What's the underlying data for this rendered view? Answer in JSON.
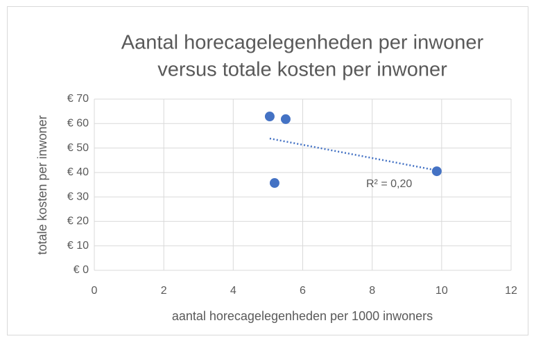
{
  "chart_data": {
    "type": "scatter",
    "title": [
      "Aantal horecagelegenheden per inwoner",
      "versus totale kosten per inwoner"
    ],
    "x_label": "aantal horecagelegenheden per 1000 inwoners",
    "y_label": "totale kosten per inwoner",
    "series": [
      {
        "name": null,
        "color": "#4472c4",
        "x": [
          5.05,
          5.51,
          5.19,
          9.86
        ],
        "values": [
          62.9,
          61.8,
          35.7,
          40.5
        ]
      }
    ],
    "trendline": {
      "type": "linear",
      "color": "#4472c4",
      "annotation": "R² = 0,20"
    },
    "xlim": [
      0,
      12
    ],
    "xticks": [
      0,
      2,
      4,
      6,
      8,
      10,
      12
    ],
    "ylim": [
      0,
      70
    ],
    "yticks": [
      {
        "value": 0,
        "label": "€ 0"
      },
      {
        "value": 10,
        "label": "€ 10"
      },
      {
        "value": 20,
        "label": "€ 20"
      },
      {
        "value": 30,
        "label": "€ 30"
      },
      {
        "value": 40,
        "label": "€ 40"
      },
      {
        "value": 50,
        "label": "€ 50"
      },
      {
        "value": 60,
        "label": "€ 60"
      },
      {
        "value": 70,
        "label": "€ 70"
      }
    ],
    "grid": true
  }
}
